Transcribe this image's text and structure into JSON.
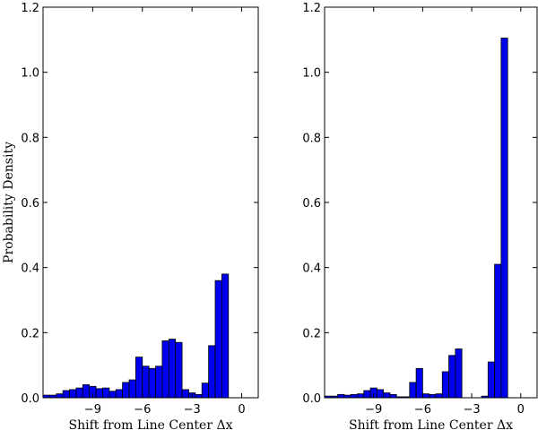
{
  "chart_data": [
    {
      "type": "bar",
      "ylabel": "Probability Density",
      "xlabel": "Shift from Line Center Δx",
      "xlim": [
        -12,
        1
      ],
      "ylim": [
        0,
        1.2
      ],
      "xticks": [
        {
          "value": -9,
          "label": "−9"
        },
        {
          "value": -6,
          "label": "−6"
        },
        {
          "value": -3,
          "label": "−3"
        },
        {
          "value": 0,
          "label": "0"
        }
      ],
      "yticks": [
        {
          "value": 0,
          "label": "0.0"
        },
        {
          "value": 0.2,
          "label": "0.2"
        },
        {
          "value": 0.4,
          "label": "0.4"
        },
        {
          "value": 0.6,
          "label": "0.6"
        },
        {
          "value": 0.8,
          "label": "0.8"
        },
        {
          "value": 1.0,
          "label": "1.0"
        },
        {
          "value": 1.2,
          "label": "1.2"
        }
      ],
      "bar_color": "#0000ee",
      "bins": [
        {
          "x0": -12.0,
          "x1": -11.6,
          "y": 0.008
        },
        {
          "x0": -11.6,
          "x1": -11.2,
          "y": 0.008
        },
        {
          "x0": -11.2,
          "x1": -10.8,
          "y": 0.012
        },
        {
          "x0": -10.8,
          "x1": -10.4,
          "y": 0.022
        },
        {
          "x0": -10.4,
          "x1": -10.0,
          "y": 0.025
        },
        {
          "x0": -10.0,
          "x1": -9.6,
          "y": 0.03
        },
        {
          "x0": -9.6,
          "x1": -9.2,
          "y": 0.04
        },
        {
          "x0": -9.2,
          "x1": -8.8,
          "y": 0.035
        },
        {
          "x0": -8.8,
          "x1": -8.4,
          "y": 0.028
        },
        {
          "x0": -8.4,
          "x1": -8.0,
          "y": 0.03
        },
        {
          "x0": -8.0,
          "x1": -7.6,
          "y": 0.02
        },
        {
          "x0": -7.6,
          "x1": -7.2,
          "y": 0.025
        },
        {
          "x0": -7.2,
          "x1": -6.8,
          "y": 0.047
        },
        {
          "x0": -6.8,
          "x1": -6.4,
          "y": 0.055
        },
        {
          "x0": -6.4,
          "x1": -6.0,
          "y": 0.125
        },
        {
          "x0": -6.0,
          "x1": -5.6,
          "y": 0.097
        },
        {
          "x0": -5.6,
          "x1": -5.2,
          "y": 0.09
        },
        {
          "x0": -5.2,
          "x1": -4.8,
          "y": 0.097
        },
        {
          "x0": -4.8,
          "x1": -4.4,
          "y": 0.175
        },
        {
          "x0": -4.4,
          "x1": -4.0,
          "y": 0.18
        },
        {
          "x0": -4.0,
          "x1": -3.6,
          "y": 0.17
        },
        {
          "x0": -3.6,
          "x1": -3.2,
          "y": 0.025
        },
        {
          "x0": -3.2,
          "x1": -2.8,
          "y": 0.015
        },
        {
          "x0": -2.8,
          "x1": -2.4,
          "y": 0.01
        },
        {
          "x0": -2.4,
          "x1": -2.0,
          "y": 0.045
        },
        {
          "x0": -2.0,
          "x1": -1.6,
          "y": 0.16
        },
        {
          "x0": -1.6,
          "x1": -1.2,
          "y": 0.36
        },
        {
          "x0": -1.2,
          "x1": -0.8,
          "y": 0.38
        }
      ]
    },
    {
      "type": "bar",
      "ylabel": "",
      "xlabel": "Shift from Line Center Δx",
      "xlim": [
        -12,
        1
      ],
      "ylim": [
        0,
        1.2
      ],
      "xticks": [
        {
          "value": -9,
          "label": "−9"
        },
        {
          "value": -6,
          "label": "−6"
        },
        {
          "value": -3,
          "label": "−3"
        },
        {
          "value": 0,
          "label": "0"
        }
      ],
      "yticks": [
        {
          "value": 0,
          "label": "0.0"
        },
        {
          "value": 0.2,
          "label": "0.2"
        },
        {
          "value": 0.4,
          "label": "0.4"
        },
        {
          "value": 0.6,
          "label": "0.6"
        },
        {
          "value": 0.8,
          "label": "0.8"
        },
        {
          "value": 1.0,
          "label": "1.0"
        },
        {
          "value": 1.2,
          "label": "1.2"
        }
      ],
      "bar_color": "#0000ee",
      "bins": [
        {
          "x0": -12.0,
          "x1": -11.6,
          "y": 0.005
        },
        {
          "x0": -11.6,
          "x1": -11.2,
          "y": 0.005
        },
        {
          "x0": -11.2,
          "x1": -10.8,
          "y": 0.01
        },
        {
          "x0": -10.8,
          "x1": -10.4,
          "y": 0.008
        },
        {
          "x0": -10.4,
          "x1": -10.0,
          "y": 0.01
        },
        {
          "x0": -10.0,
          "x1": -9.6,
          "y": 0.012
        },
        {
          "x0": -9.6,
          "x1": -9.2,
          "y": 0.022
        },
        {
          "x0": -9.2,
          "x1": -8.8,
          "y": 0.03
        },
        {
          "x0": -8.8,
          "x1": -8.4,
          "y": 0.025
        },
        {
          "x0": -8.4,
          "x1": -8.0,
          "y": 0.015
        },
        {
          "x0": -8.0,
          "x1": -7.6,
          "y": 0.01
        },
        {
          "x0": -7.6,
          "x1": -7.2,
          "y": 0.003
        },
        {
          "x0": -7.2,
          "x1": -6.8,
          "y": 0.003
        },
        {
          "x0": -6.8,
          "x1": -6.4,
          "y": 0.047
        },
        {
          "x0": -6.4,
          "x1": -6.0,
          "y": 0.09
        },
        {
          "x0": -6.0,
          "x1": -5.6,
          "y": 0.012
        },
        {
          "x0": -5.6,
          "x1": -5.2,
          "y": 0.01
        },
        {
          "x0": -5.2,
          "x1": -4.8,
          "y": 0.012
        },
        {
          "x0": -4.8,
          "x1": -4.4,
          "y": 0.08
        },
        {
          "x0": -4.4,
          "x1": -4.0,
          "y": 0.13
        },
        {
          "x0": -4.0,
          "x1": -3.6,
          "y": 0.15
        },
        {
          "x0": -3.6,
          "x1": -3.2,
          "y": 0.0
        },
        {
          "x0": -3.2,
          "x1": -2.8,
          "y": 0.0
        },
        {
          "x0": -2.8,
          "x1": -2.4,
          "y": 0.0
        },
        {
          "x0": -2.4,
          "x1": -2.0,
          "y": 0.005
        },
        {
          "x0": -2.0,
          "x1": -1.6,
          "y": 0.11
        },
        {
          "x0": -1.6,
          "x1": -1.2,
          "y": 0.41
        },
        {
          "x0": -1.2,
          "x1": -0.8,
          "y": 1.105
        }
      ]
    }
  ]
}
